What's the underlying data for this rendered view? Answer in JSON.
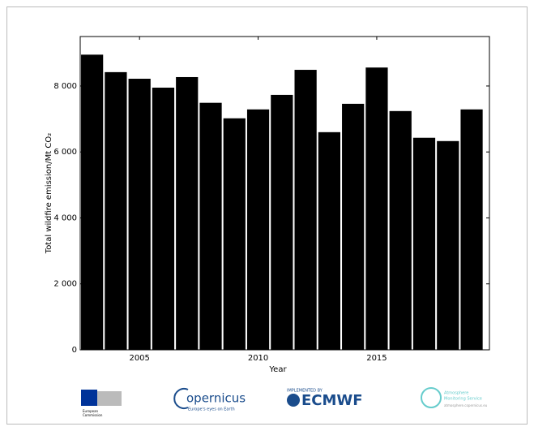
{
  "chart_data": {
    "type": "bar",
    "x": [
      2003,
      2004,
      2005,
      2006,
      2007,
      2008,
      2009,
      2010,
      2011,
      2012,
      2013,
      2014,
      2015,
      2016,
      2017,
      2018,
      2019
    ],
    "values": [
      8950,
      8420,
      8220,
      7950,
      8270,
      7490,
      7020,
      7290,
      7730,
      8490,
      6600,
      7460,
      8560,
      7240,
      6430,
      6330,
      7290
    ],
    "color": "#000000",
    "xlabel": "Year",
    "ylabel": "Total wildfire emission/Mt CO₂",
    "xlim": [
      2002.5,
      2019.75
    ],
    "xticks": [
      2005,
      2010,
      2015
    ],
    "ylim": [
      0,
      9500
    ],
    "yticks": [
      0,
      {
        "value": 2000,
        "label": "2 000"
      },
      {
        "value": 4000,
        "label": "4 000"
      },
      {
        "value": 6000,
        "label": "6 000"
      },
      {
        "value": 8000,
        "label": "8 000"
      }
    ]
  },
  "logos": {
    "ec": [
      "European",
      "Commission"
    ],
    "copernicus": {
      "name": "opernicus",
      "tagline": "Europe's eyes on Earth"
    },
    "ecmwf": {
      "implemented": "IMPLEMENTED BY",
      "name": "ECMWF"
    },
    "cams": {
      "name": [
        "Atmosphere",
        "Monitoring Service"
      ],
      "url": "atmosphere.copernicus.eu"
    }
  }
}
